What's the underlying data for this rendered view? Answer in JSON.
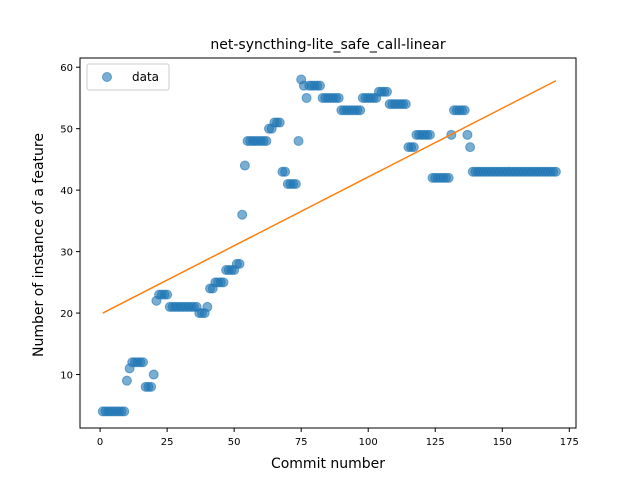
{
  "chart_data": {
    "type": "scatter",
    "title": "net-syncthing-lite_safe_call-linear",
    "xlabel": "Commit number",
    "ylabel": "Number of instance of a feature",
    "xlim": [
      -7.5,
      177.5
    ],
    "ylim": [
      1.3,
      61.5
    ],
    "xticks": [
      0,
      25,
      50,
      75,
      100,
      125,
      150,
      175
    ],
    "yticks": [
      10,
      20,
      30,
      40,
      50,
      60
    ],
    "grid": false,
    "legend": {
      "placement": "top-left",
      "entries": [
        "data"
      ]
    },
    "colors": {
      "data": "#1f77b4",
      "fit": "#ff7f0e"
    },
    "series": [
      {
        "name": "data",
        "kind": "scatter",
        "points": [
          [
            1,
            4
          ],
          [
            2,
            4
          ],
          [
            3,
            4
          ],
          [
            4,
            4
          ],
          [
            5,
            4
          ],
          [
            6,
            4
          ],
          [
            7,
            4
          ],
          [
            8,
            4
          ],
          [
            9,
            4
          ],
          [
            10,
            9
          ],
          [
            11,
            11
          ],
          [
            12,
            12
          ],
          [
            13,
            12
          ],
          [
            14,
            12
          ],
          [
            15,
            12
          ],
          [
            16,
            12
          ],
          [
            17,
            8
          ],
          [
            18,
            8
          ],
          [
            19,
            8
          ],
          [
            20,
            10
          ],
          [
            21,
            22
          ],
          [
            22,
            23
          ],
          [
            23,
            23
          ],
          [
            24,
            23
          ],
          [
            25,
            23
          ],
          [
            26,
            21
          ],
          [
            27,
            21
          ],
          [
            28,
            21
          ],
          [
            29,
            21
          ],
          [
            30,
            21
          ],
          [
            31,
            21
          ],
          [
            32,
            21
          ],
          [
            33,
            21
          ],
          [
            34,
            21
          ],
          [
            35,
            21
          ],
          [
            36,
            21
          ],
          [
            37,
            20
          ],
          [
            38,
            20
          ],
          [
            39,
            20
          ],
          [
            40,
            21
          ],
          [
            41,
            24
          ],
          [
            42,
            24
          ],
          [
            43,
            25
          ],
          [
            44,
            25
          ],
          [
            45,
            25
          ],
          [
            46,
            25
          ],
          [
            47,
            27
          ],
          [
            48,
            27
          ],
          [
            49,
            27
          ],
          [
            50,
            27
          ],
          [
            51,
            28
          ],
          [
            52,
            28
          ],
          [
            53,
            36
          ],
          [
            54,
            44
          ],
          [
            55,
            48
          ],
          [
            56,
            48
          ],
          [
            57,
            48
          ],
          [
            58,
            48
          ],
          [
            59,
            48
          ],
          [
            60,
            48
          ],
          [
            61,
            48
          ],
          [
            62,
            48
          ],
          [
            63,
            50
          ],
          [
            64,
            50
          ],
          [
            65,
            51
          ],
          [
            66,
            51
          ],
          [
            67,
            51
          ],
          [
            68,
            43
          ],
          [
            69,
            43
          ],
          [
            70,
            41
          ],
          [
            71,
            41
          ],
          [
            72,
            41
          ],
          [
            73,
            41
          ],
          [
            74,
            48
          ],
          [
            75,
            58
          ],
          [
            76,
            57
          ],
          [
            77,
            55
          ],
          [
            78,
            57
          ],
          [
            79,
            57
          ],
          [
            80,
            57
          ],
          [
            81,
            57
          ],
          [
            82,
            57
          ],
          [
            83,
            55
          ],
          [
            84,
            55
          ],
          [
            85,
            55
          ],
          [
            86,
            55
          ],
          [
            87,
            55
          ],
          [
            88,
            55
          ],
          [
            89,
            55
          ],
          [
            90,
            53
          ],
          [
            91,
            53
          ],
          [
            92,
            53
          ],
          [
            93,
            53
          ],
          [
            94,
            53
          ],
          [
            95,
            53
          ],
          [
            96,
            53
          ],
          [
            97,
            53
          ],
          [
            98,
            55
          ],
          [
            99,
            55
          ],
          [
            100,
            55
          ],
          [
            101,
            55
          ],
          [
            102,
            55
          ],
          [
            103,
            55
          ],
          [
            104,
            56
          ],
          [
            105,
            56
          ],
          [
            106,
            56
          ],
          [
            107,
            56
          ],
          [
            108,
            54
          ],
          [
            109,
            54
          ],
          [
            110,
            54
          ],
          [
            111,
            54
          ],
          [
            112,
            54
          ],
          [
            113,
            54
          ],
          [
            114,
            54
          ],
          [
            115,
            47
          ],
          [
            116,
            47
          ],
          [
            117,
            47
          ],
          [
            118,
            49
          ],
          [
            119,
            49
          ],
          [
            120,
            49
          ],
          [
            121,
            49
          ],
          [
            122,
            49
          ],
          [
            123,
            49
          ],
          [
            124,
            42
          ],
          [
            125,
            42
          ],
          [
            126,
            42
          ],
          [
            127,
            42
          ],
          [
            128,
            42
          ],
          [
            129,
            42
          ],
          [
            130,
            42
          ],
          [
            131,
            49
          ],
          [
            132,
            53
          ],
          [
            133,
            53
          ],
          [
            134,
            53
          ],
          [
            135,
            53
          ],
          [
            136,
            53
          ],
          [
            137,
            49
          ],
          [
            138,
            47
          ],
          [
            139,
            43
          ],
          [
            140,
            43
          ],
          [
            141,
            43
          ],
          [
            142,
            43
          ],
          [
            143,
            43
          ],
          [
            144,
            43
          ],
          [
            145,
            43
          ],
          [
            146,
            43
          ],
          [
            147,
            43
          ],
          [
            148,
            43
          ],
          [
            149,
            43
          ],
          [
            150,
            43
          ],
          [
            151,
            43
          ],
          [
            152,
            43
          ],
          [
            153,
            43
          ],
          [
            154,
            43
          ],
          [
            155,
            43
          ],
          [
            156,
            43
          ],
          [
            157,
            43
          ],
          [
            158,
            43
          ],
          [
            159,
            43
          ],
          [
            160,
            43
          ],
          [
            161,
            43
          ],
          [
            162,
            43
          ],
          [
            163,
            43
          ],
          [
            164,
            43
          ],
          [
            165,
            43
          ],
          [
            166,
            43
          ],
          [
            167,
            43
          ],
          [
            168,
            43
          ],
          [
            169,
            43
          ],
          [
            170,
            43
          ]
        ]
      },
      {
        "kind": "line",
        "points": [
          [
            1,
            20.0
          ],
          [
            170,
            57.8
          ]
        ]
      }
    ]
  }
}
